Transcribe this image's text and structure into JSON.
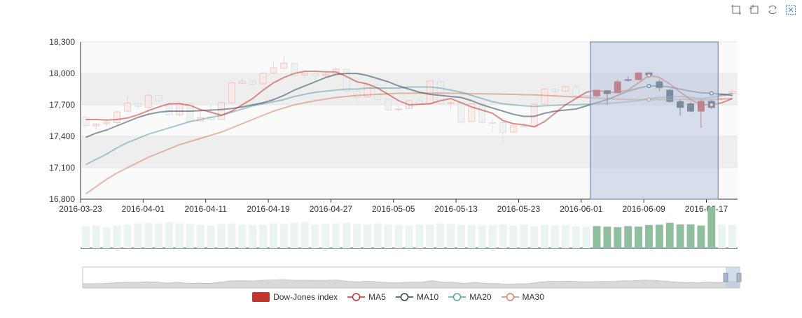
{
  "toolbox": {
    "icons": [
      "select-icon",
      "restore-icon",
      "refresh-icon",
      "clear-icon"
    ]
  },
  "colors": {
    "up": "#c23531",
    "down": "#314656",
    "ma5": "#c23531",
    "ma10": "#2f4554",
    "ma20": "#61a0a8",
    "ma30": "#d48265",
    "volume_selected": "#8fbf9f",
    "volume_unselected": "#ecf4f0",
    "brush": "#bac5dc"
  },
  "chart_data": {
    "type": "candlestick",
    "title": "",
    "xlabel": "",
    "ylabel": "",
    "ylim": [
      16800,
      18300
    ],
    "y_ticks": [
      "18,300",
      "18,000",
      "17,700",
      "17,400",
      "17,100",
      "16,800"
    ],
    "x_ticks": [
      "2016-03-23",
      "2016-04-01",
      "2016-04-11",
      "2016-04-19",
      "2016-04-27",
      "2016-05-05",
      "2016-05-13",
      "2016-05-23",
      "2016-06-01",
      "2016-06-09",
      "2016-06-17"
    ],
    "legend": [
      "Dow-Jones index",
      "MA5",
      "MA10",
      "MA20",
      "MA30"
    ],
    "legend_position": "bottom",
    "grid": true,
    "dates": [
      "2016-03-23",
      "2016-03-24",
      "2016-03-28",
      "2016-03-29",
      "2016-03-30",
      "2016-03-31",
      "2016-04-01",
      "2016-04-04",
      "2016-04-05",
      "2016-04-06",
      "2016-04-07",
      "2016-04-08",
      "2016-04-11",
      "2016-04-12",
      "2016-04-13",
      "2016-04-14",
      "2016-04-15",
      "2016-04-18",
      "2016-04-19",
      "2016-04-20",
      "2016-04-21",
      "2016-04-22",
      "2016-04-25",
      "2016-04-26",
      "2016-04-27",
      "2016-04-28",
      "2016-04-29",
      "2016-05-02",
      "2016-05-03",
      "2016-05-04",
      "2016-05-05",
      "2016-05-06",
      "2016-05-09",
      "2016-05-10",
      "2016-05-11",
      "2016-05-12",
      "2016-05-13",
      "2016-05-16",
      "2016-05-17",
      "2016-05-18",
      "2016-05-19",
      "2016-05-20",
      "2016-05-23",
      "2016-05-24",
      "2016-05-25",
      "2016-05-26",
      "2016-05-27",
      "2016-05-31",
      "2016-06-01",
      "2016-06-02",
      "2016-06-03",
      "2016-06-06",
      "2016-06-07",
      "2016-06-08",
      "2016-06-09",
      "2016-06-10",
      "2016-06-13",
      "2016-06-14",
      "2016-06-15",
      "2016-06-16",
      "2016-06-17",
      "2016-06-20",
      "2016-06-21"
    ],
    "ohlc": [
      [
        17582,
        17502,
        17483,
        17605
      ],
      [
        17500,
        17515,
        17460,
        17525
      ],
      [
        17520,
        17535,
        17495,
        17560
      ],
      [
        17530,
        17633,
        17505,
        17645
      ],
      [
        17640,
        17716,
        17630,
        17780
      ],
      [
        17714,
        17685,
        17660,
        17720
      ],
      [
        17676,
        17792,
        17600,
        17810
      ],
      [
        17790,
        17737,
        17720,
        17800
      ],
      [
        17700,
        17603,
        17580,
        17710
      ],
      [
        17605,
        17716,
        17590,
        17725
      ],
      [
        17715,
        17541,
        17520,
        17720
      ],
      [
        17545,
        17577,
        17540,
        17660
      ],
      [
        17580,
        17556,
        17550,
        17700
      ],
      [
        17560,
        17721,
        17555,
        17730
      ],
      [
        17720,
        17909,
        17710,
        17920
      ],
      [
        17905,
        17926,
        17900,
        17950
      ],
      [
        17925,
        17897,
        17880,
        17935
      ],
      [
        17900,
        18004,
        17895,
        18010
      ],
      [
        18005,
        18053,
        17990,
        18110
      ],
      [
        18050,
        18096,
        18030,
        18160
      ],
      [
        18095,
        17982,
        17970,
        18100
      ],
      [
        17985,
        18003,
        17950,
        18010
      ],
      [
        18000,
        17977,
        17920,
        18010
      ],
      [
        17978,
        17990,
        17950,
        18020
      ],
      [
        17995,
        18041,
        17980,
        18060
      ],
      [
        18040,
        17830,
        17800,
        18050
      ],
      [
        17830,
        17773,
        17720,
        17835
      ],
      [
        17775,
        17891,
        17770,
        17900
      ],
      [
        17890,
        17750,
        17740,
        17895
      ],
      [
        17755,
        17651,
        17640,
        17760
      ],
      [
        17655,
        17660,
        17630,
        17690
      ],
      [
        17665,
        17740,
        17660,
        17745
      ],
      [
        17740,
        17705,
        17700,
        17770
      ],
      [
        17710,
        17928,
        17700,
        17935
      ],
      [
        17920,
        17711,
        17700,
        17925
      ],
      [
        17715,
        17720,
        17650,
        17740
      ],
      [
        17720,
        17535,
        17520,
        17730
      ],
      [
        17540,
        17710,
        17530,
        17715
      ],
      [
        17710,
        17529,
        17520,
        17720
      ],
      [
        17530,
        17526,
        17440,
        17570
      ],
      [
        17530,
        17435,
        17330,
        17530
      ],
      [
        17440,
        17500,
        17430,
        17510
      ],
      [
        17500,
        17492,
        17480,
        17520
      ],
      [
        17495,
        17706,
        17490,
        17710
      ],
      [
        17705,
        17851,
        17700,
        17860
      ],
      [
        17850,
        17828,
        17800,
        17870
      ],
      [
        17830,
        17873,
        17820,
        17880
      ],
      [
        17870,
        17787,
        17780,
        17890
      ],
      [
        17790,
        17789,
        17750,
        17830
      ],
      [
        17785,
        17838,
        17770,
        17840
      ],
      [
        17835,
        17807,
        17700,
        17840
      ],
      [
        17815,
        17920,
        17810,
        17940
      ],
      [
        17940,
        17938,
        17920,
        17970
      ],
      [
        17940,
        18005,
        17935,
        18010
      ],
      [
        18005,
        17985,
        17960,
        18010
      ],
      [
        17920,
        17865,
        17830,
        17940
      ],
      [
        17840,
        17732,
        17720,
        17850
      ],
      [
        17730,
        17675,
        17600,
        17750
      ],
      [
        17710,
        17640,
        17630,
        17725
      ],
      [
        17640,
        17733,
        17480,
        17750
      ],
      [
        17733,
        17675,
        17660,
        17745
      ],
      [
        17760,
        17804,
        17740,
        17830
      ],
      [
        17810,
        17830,
        17780,
        17850
      ]
    ],
    "ma5": [
      17560,
      17560,
      17555,
      17560,
      17575,
      17605,
      17645,
      17680,
      17710,
      17710,
      17695,
      17655,
      17630,
      17600,
      17640,
      17700,
      17760,
      17840,
      17910,
      17960,
      18000,
      18020,
      18020,
      18015,
      18015,
      17970,
      17920,
      17900,
      17860,
      17800,
      17740,
      17700,
      17705,
      17710,
      17740,
      17760,
      17720,
      17680,
      17650,
      17620,
      17550,
      17520,
      17510,
      17490,
      17540,
      17620,
      17700,
      17760,
      17820,
      17840,
      17820,
      17820,
      17840,
      17910,
      17980,
      17960,
      17900,
      17820,
      17750,
      17700,
      17700,
      17720,
      17760
    ],
    "ma10": [
      17390,
      17430,
      17460,
      17500,
      17540,
      17580,
      17610,
      17630,
      17640,
      17640,
      17640,
      17645,
      17650,
      17655,
      17665,
      17680,
      17700,
      17720,
      17750,
      17790,
      17840,
      17880,
      17920,
      17960,
      17990,
      18000,
      18000,
      17980,
      17950,
      17920,
      17880,
      17850,
      17820,
      17800,
      17790,
      17780,
      17770,
      17740,
      17700,
      17670,
      17640,
      17610,
      17590,
      17590,
      17620,
      17640,
      17650,
      17660,
      17690,
      17720,
      17750,
      17790,
      17830,
      17860,
      17880,
      17880,
      17870,
      17850,
      17830,
      17815,
      17810,
      17800,
      17790
    ],
    "ma20": [
      17130,
      17180,
      17230,
      17290,
      17340,
      17380,
      17420,
      17450,
      17480,
      17510,
      17540,
      17560,
      17580,
      17600,
      17630,
      17660,
      17690,
      17710,
      17730,
      17750,
      17780,
      17800,
      17820,
      17830,
      17840,
      17850,
      17850,
      17860,
      17860,
      17860,
      17860,
      17870,
      17870,
      17870,
      17860,
      17840,
      17820,
      17790,
      17760,
      17730,
      17710,
      17700,
      17690,
      17685,
      17690,
      17695,
      17700,
      17700,
      17705,
      17710,
      17715,
      17720,
      17730,
      17740,
      17760,
      17770,
      17775,
      17780,
      17770,
      17760,
      17770,
      17790,
      17810
    ],
    "ma30": [
      16850,
      16920,
      16990,
      17050,
      17100,
      17150,
      17200,
      17240,
      17280,
      17320,
      17350,
      17380,
      17410,
      17440,
      17480,
      17520,
      17560,
      17600,
      17640,
      17670,
      17700,
      17720,
      17740,
      17755,
      17770,
      17780,
      17790,
      17795,
      17800,
      17805,
      17810,
      17810,
      17812,
      17812,
      17812,
      17810,
      17808,
      17806,
      17805,
      17804,
      17802,
      17800,
      17797,
      17795,
      17790,
      17785,
      17780,
      17775,
      17770,
      17765,
      17760,
      17755,
      17752,
      17750,
      17750,
      17750,
      17752,
      17752,
      17752,
      17750,
      17750,
      17755,
      17760
    ],
    "volume": [
      80,
      82,
      75,
      82,
      85,
      90,
      92,
      90,
      95,
      90,
      88,
      85,
      82,
      88,
      90,
      85,
      83,
      85,
      90,
      88,
      92,
      95,
      85,
      88,
      90,
      92,
      88,
      85,
      90,
      86,
      84,
      82,
      86,
      85,
      90,
      88,
      84,
      85,
      82,
      84,
      86,
      82,
      86,
      80,
      84,
      82,
      84,
      80,
      78,
      80,
      78,
      76,
      80,
      78,
      84,
      85,
      92,
      86,
      86,
      82,
      150,
      86,
      84
    ],
    "brush_range": [
      "2016-06-02",
      "2016-06-17"
    ]
  }
}
